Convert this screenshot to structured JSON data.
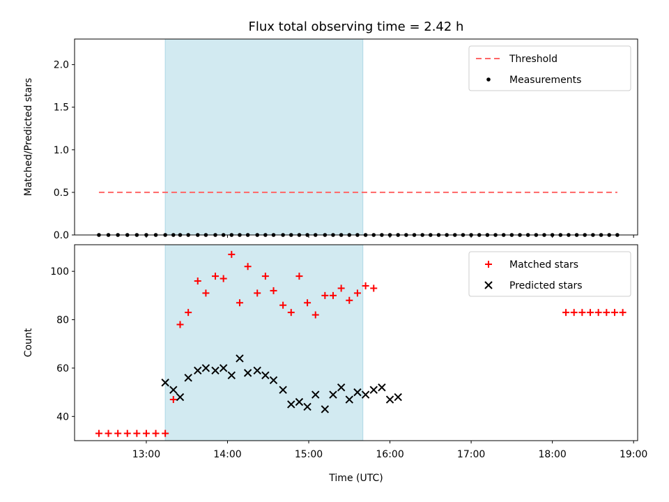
{
  "chart_data": [
    {
      "type": "scatter",
      "title": "Flux total observing time = 2.42 h",
      "ylabel": "Matched/Predicted stars",
      "xlabel": "",
      "x_unit": "time (UTC)",
      "xlim": [
        "12:07",
        "19:03"
      ],
      "ylim": [
        0,
        2.3
      ],
      "y_ticks": [
        "0.0",
        "0.5",
        "1.0",
        "1.5",
        "2.0"
      ],
      "shaded_interval": [
        "13:14",
        "15:40"
      ],
      "shade_color": "#add8e6",
      "legend_position": "upper-right",
      "series": [
        {
          "name": "Threshold",
          "style": "dashed-line",
          "color": "#ff6666",
          "x": [
            "12:25",
            "18:48"
          ],
          "y": [
            0.5,
            0.5
          ]
        },
        {
          "name": "Measurements",
          "style": "dot",
          "color": "#000000",
          "x": [
            "12:25",
            "12:32",
            "12:39",
            "12:46",
            "12:53",
            "13:00",
            "13:07",
            "13:14",
            "13:20",
            "13:25",
            "13:31",
            "13:38",
            "13:44",
            "13:51",
            "13:57",
            "14:03",
            "14:09",
            "14:15",
            "14:22",
            "14:28",
            "14:34",
            "14:41",
            "14:47",
            "14:53",
            "14:59",
            "15:05",
            "15:12",
            "15:18",
            "15:24",
            "15:30",
            "15:36",
            "15:42",
            "15:48",
            "15:54",
            "16:00",
            "16:06",
            "16:12",
            "16:18",
            "16:24",
            "16:30",
            "16:36",
            "16:42",
            "16:48",
            "16:54",
            "17:00",
            "17:06",
            "17:12",
            "17:18",
            "17:24",
            "17:30",
            "17:36",
            "17:42",
            "17:48",
            "17:54",
            "18:00",
            "18:06",
            "18:12",
            "18:18",
            "18:24",
            "18:30",
            "18:36",
            "18:42",
            "18:48"
          ],
          "y": [
            0,
            0,
            0,
            0,
            0,
            0,
            0,
            0,
            0,
            0,
            0,
            0,
            0,
            0,
            0,
            0,
            0,
            0,
            0,
            0,
            0,
            0,
            0,
            0,
            0,
            0,
            0,
            0,
            0,
            0,
            0,
            0,
            0,
            0,
            0,
            0,
            0,
            0,
            0,
            0,
            0,
            0,
            0,
            0,
            0,
            0,
            0,
            0,
            0,
            0,
            0,
            0,
            0,
            0,
            0,
            0,
            0,
            0,
            0,
            0,
            0,
            0,
            0
          ]
        }
      ]
    },
    {
      "type": "scatter",
      "title": "",
      "ylabel": "Count",
      "xlabel": "Time (UTC)",
      "xlim": [
        "12:07",
        "19:03"
      ],
      "ylim": [
        30,
        111
      ],
      "y_ticks": [
        "40",
        "60",
        "80",
        "100"
      ],
      "x_ticks": [
        "13:00",
        "14:00",
        "15:00",
        "16:00",
        "17:00",
        "18:00",
        "19:00"
      ],
      "shaded_interval": [
        "13:14",
        "15:40"
      ],
      "shade_color": "#add8e6",
      "legend_position": "upper-right",
      "series": [
        {
          "name": "Matched stars",
          "style": "plus",
          "color": "#ff0000",
          "x": [
            "12:25",
            "12:32",
            "12:39",
            "12:46",
            "12:53",
            "13:00",
            "13:07",
            "13:14",
            "13:20",
            "13:25",
            "13:31",
            "13:38",
            "13:44",
            "13:51",
            "13:57",
            "14:03",
            "14:09",
            "14:15",
            "14:22",
            "14:28",
            "14:34",
            "14:41",
            "14:47",
            "14:53",
            "14:59",
            "15:05",
            "15:12",
            "15:18",
            "15:24",
            "15:30",
            "15:36",
            "15:42",
            "15:48",
            "18:10",
            "18:16",
            "18:22",
            "18:28",
            "18:34",
            "18:40",
            "18:46",
            "18:52"
          ],
          "y": [
            33,
            33,
            33,
            33,
            33,
            33,
            33,
            33,
            47,
            78,
            83,
            96,
            91,
            98,
            97,
            107,
            87,
            102,
            91,
            98,
            92,
            86,
            83,
            98,
            87,
            82,
            90,
            90,
            93,
            88,
            91,
            94,
            93,
            83,
            83,
            83,
            83,
            83,
            83,
            83,
            83
          ]
        },
        {
          "name": "Predicted stars",
          "style": "x",
          "color": "#000000",
          "x": [
            "13:14",
            "13:20",
            "13:25",
            "13:31",
            "13:38",
            "13:44",
            "13:51",
            "13:57",
            "14:03",
            "14:09",
            "14:15",
            "14:22",
            "14:28",
            "14:34",
            "14:41",
            "14:47",
            "14:53",
            "14:59",
            "15:05",
            "15:12",
            "15:18",
            "15:24",
            "15:30",
            "15:36",
            "15:42",
            "15:48",
            "15:54",
            "16:00",
            "16:06"
          ],
          "y": [
            54,
            51,
            48,
            56,
            59,
            60,
            59,
            60,
            57,
            64,
            58,
            59,
            57,
            55,
            51,
            45,
            46,
            44,
            49,
            43,
            49,
            52,
            47,
            50,
            49,
            51,
            52,
            47,
            48
          ]
        }
      ]
    }
  ]
}
